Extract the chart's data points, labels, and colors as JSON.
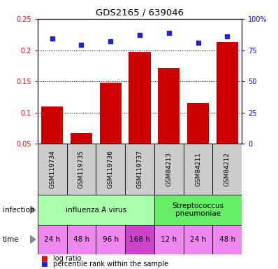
{
  "title": "GDS2165 / 639046",
  "samples": [
    "GSM119734",
    "GSM119735",
    "GSM119736",
    "GSM119737",
    "GSM84213",
    "GSM84211",
    "GSM84212"
  ],
  "log_ratio": [
    0.11,
    0.067,
    0.148,
    0.197,
    0.172,
    0.115,
    0.213
  ],
  "percentile_rank": [
    84,
    79,
    82,
    87,
    89,
    81,
    86
  ],
  "ylim_left": [
    0.05,
    0.25
  ],
  "ylim_right": [
    0,
    100
  ],
  "yticks_left": [
    0.05,
    0.1,
    0.15,
    0.2,
    0.25
  ],
  "yticks_right": [
    0,
    25,
    50,
    75,
    100
  ],
  "ytick_labels_left": [
    "0.05",
    "0.1",
    "0.15",
    "0.2",
    "0.25"
  ],
  "ytick_labels_right": [
    "0",
    "25",
    "50",
    "75",
    "100%"
  ],
  "bar_color": "#cc0000",
  "scatter_color": "#2222cc",
  "infection_groups": [
    {
      "label": "influenza A virus",
      "start": 0,
      "end": 4,
      "color": "#aaffaa"
    },
    {
      "label": "Streptococcus\npneumoniae",
      "start": 4,
      "end": 7,
      "color": "#66ee66"
    }
  ],
  "time_labels": [
    "24 h",
    "48 h",
    "96 h",
    "168 h",
    "12 h",
    "24 h",
    "48 h"
  ],
  "time_colors": [
    "#ee88ee",
    "#ee88ee",
    "#ee88ee",
    "#cc44cc",
    "#ee88ee",
    "#ee88ee",
    "#ee88ee"
  ],
  "sample_bg_color": "#cccccc",
  "legend_red_label": "log ratio",
  "legend_blue_label": "percentile rank within the sample",
  "infection_label": "infection",
  "time_label": "time",
  "fig_width": 3.98,
  "fig_height": 3.84,
  "dpi": 100
}
